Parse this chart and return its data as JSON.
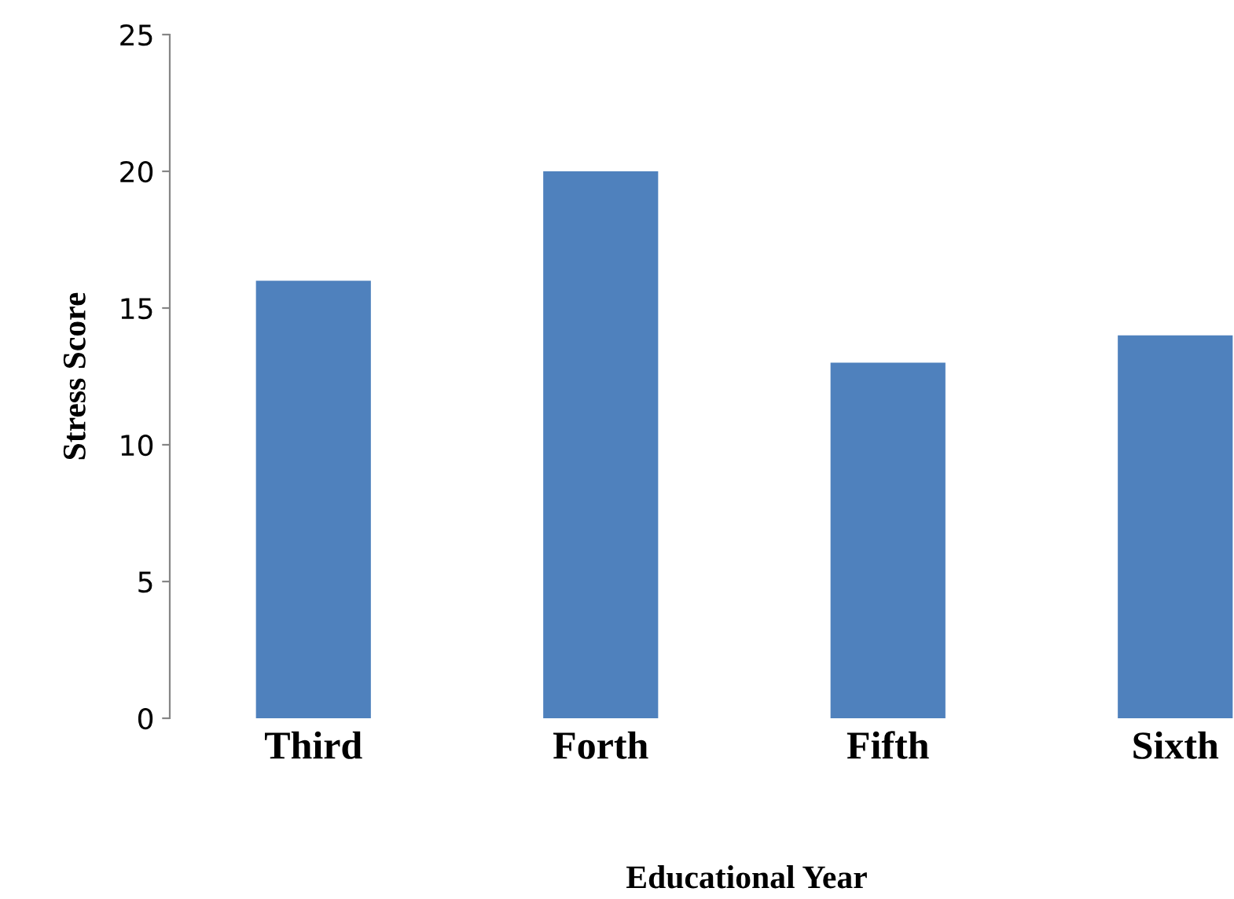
{
  "chart_data": {
    "type": "bar",
    "xlabel": "Educational Year",
    "ylabel": "Stress Score",
    "categories": [
      "Third",
      "Forth",
      "Fifth",
      "Sixth"
    ],
    "values": [
      16,
      20,
      13,
      14
    ],
    "color": "#4f81bd",
    "ylim": [
      0,
      25
    ],
    "yticks": [
      0,
      5,
      10,
      15,
      20,
      25
    ],
    "grid": false
  }
}
